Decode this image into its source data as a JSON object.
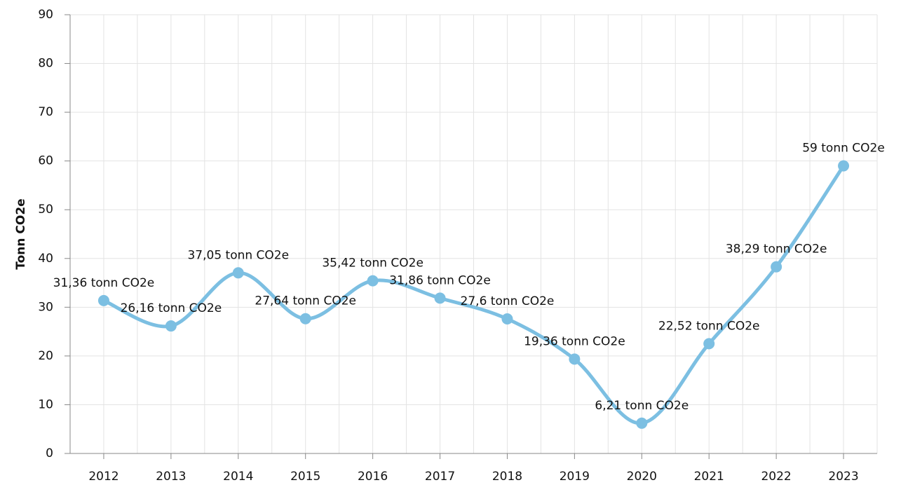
{
  "chart_data": {
    "type": "line",
    "y_label": "Tonn CO2e",
    "categories": [
      "2012",
      "2013",
      "2014",
      "2015",
      "2016",
      "2017",
      "2018",
      "2019",
      "2020",
      "2021",
      "2022",
      "2023"
    ],
    "series": [
      {
        "color": "#7cbfe2",
        "values": [
          31.36,
          26.16,
          37.05,
          27.64,
          35.42,
          31.86,
          27.6,
          19.36,
          6.21,
          22.52,
          38.29,
          59
        ],
        "value_labels": [
          "31,36 tonn CO2e",
          "26,16 tonn CO2e",
          "37,05 tonn CO2e",
          "27,64 tonn CO2e",
          "35,42 tonn CO2e",
          "31,86 tonn CO2e",
          "27,6 tonn CO2e",
          "19,36 tonn CO2e",
          "6,21 tonn CO2e",
          "22,52 tonn CO2e",
          "38,29 tonn CO2e",
          "59 tonn CO2e"
        ]
      }
    ],
    "ylim": [
      0,
      90
    ],
    "yticks": [
      0,
      10,
      20,
      30,
      40,
      50,
      60,
      70,
      80,
      90
    ],
    "grid": true
  }
}
